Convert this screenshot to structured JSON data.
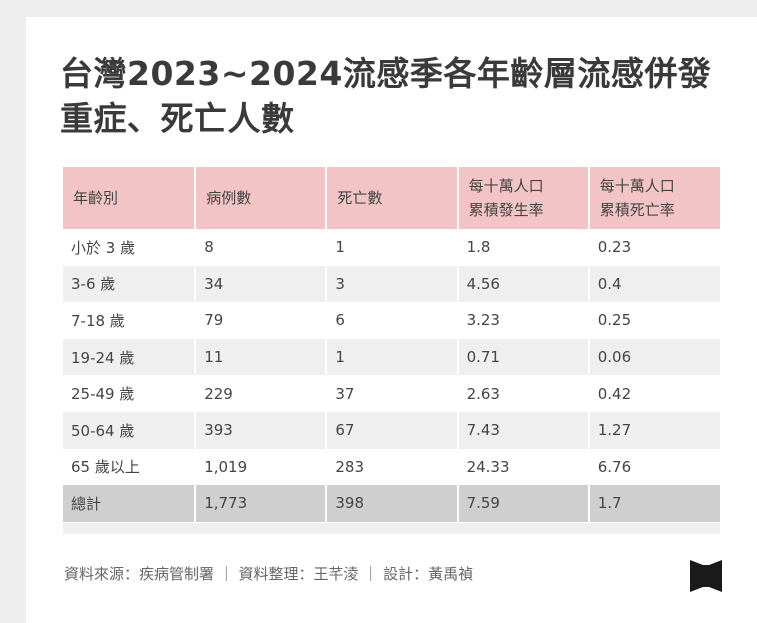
{
  "title": "台灣2023~2024流感季各年齡層流感併發重症、死亡人數",
  "chart_data": {
    "type": "table",
    "columns": [
      "年齡別",
      "病例數",
      "死亡數",
      "每十萬人口\n累積發生率",
      "每十萬人口\n累積死亡率"
    ],
    "rows": [
      [
        "小於 3 歲",
        "8",
        "1",
        "1.8",
        "0.23"
      ],
      [
        "3-6 歲",
        "34",
        "3",
        "4.56",
        "0.4"
      ],
      [
        "7-18 歲",
        "79",
        "6",
        "3.23",
        "0.25"
      ],
      [
        "19-24 歲",
        "11",
        "1",
        "0.71",
        "0.06"
      ],
      [
        "25-49 歲",
        "229",
        "37",
        "2.63",
        "0.42"
      ],
      [
        "50-64 歲",
        "393",
        "67",
        "7.43",
        "1.27"
      ],
      [
        "65 歲以上",
        "1,019",
        "283",
        "24.33",
        "6.76"
      ],
      [
        "總計",
        "1,773",
        "398",
        "7.59",
        "1.7"
      ]
    ]
  },
  "footer": "資料來源：疾病管制署 ｜ 資料整理：王芊淩 ｜ 設計：黃禹禎",
  "colors": {
    "header_bg": "#f2c4c6",
    "stripe_bg": "#efefef",
    "total_bg": "#cfcfcf",
    "title_text": "#3a3a3a",
    "logo": "#1a1a1a"
  },
  "logo_icon": "bookmark-logo-icon"
}
